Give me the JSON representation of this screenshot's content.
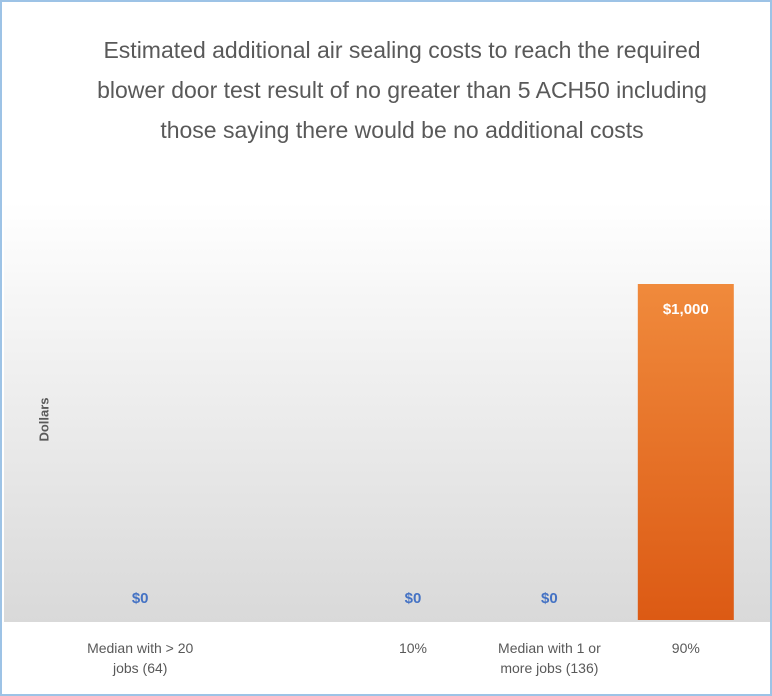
{
  "chart_data": {
    "type": "bar",
    "title": "Estimated additional air sealing costs to reach the required blower door test result of no greater than 5 ACH50 including those saying there would be no additional costs",
    "y_label": "Dollars",
    "categories": [
      "Median with > 20 jobs (64)",
      null,
      "10%",
      "Median with 1 or more jobs (136)",
      "90%"
    ],
    "values": [
      0,
      null,
      0,
      0,
      1000
    ],
    "value_labels": [
      "$0",
      null,
      "$0",
      "$0",
      "$1,000"
    ],
    "color": "#e8692a",
    "value_label_color": "#4472c4",
    "ylim": [
      0,
      1200
    ]
  }
}
